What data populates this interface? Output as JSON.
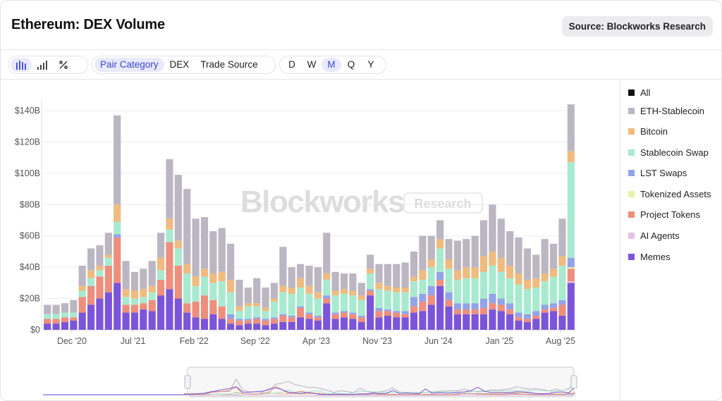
{
  "header": {
    "title": "Ethereum: DEX Volume",
    "source": "Source: Blockworks Research"
  },
  "toolbar": {
    "chart_type_icons": [
      "bar-chart-icon",
      "bar-chart-ascending-icon",
      "percent-icon"
    ],
    "group_by": [
      "Pair Category",
      "DEX",
      "Trade Source"
    ],
    "group_by_active": "Pair Category",
    "intervals": [
      "D",
      "W",
      "M",
      "Q",
      "Y"
    ],
    "interval_active": "M"
  },
  "watermark": {
    "brand": "Blockworks",
    "sub": "Research"
  },
  "legend": [
    {
      "label": "All",
      "color": "#111111"
    },
    {
      "label": "ETH-Stablecoin",
      "color": "#bbb6c2"
    },
    {
      "label": "Bitcoin",
      "color": "#efbb7f"
    },
    {
      "label": "Stablecoin Swap",
      "color": "#a8ead0"
    },
    {
      "label": "LST Swaps",
      "color": "#93a3e8"
    },
    {
      "label": "Tokenized Assets",
      "color": "#e8f2a3"
    },
    {
      "label": "Project Tokens",
      "color": "#ee8e7d"
    },
    {
      "label": "AI Agents",
      "color": "#e8bfe3"
    },
    {
      "label": "Memes",
      "color": "#7b55d9"
    }
  ],
  "chart_data": {
    "type": "bar",
    "stacked": true,
    "title": "Ethereum: DEX Volume",
    "xlabel": "",
    "ylabel": "",
    "ylim": [
      0,
      140
    ],
    "yticks": [
      "$0",
      "$20B",
      "$40B",
      "$60B",
      "$80B",
      "$100B",
      "$120B",
      "$140B"
    ],
    "xtick_labels": [
      "Dec '20",
      "Jul '21",
      "Feb '22",
      "Sep '22",
      "Apr '23",
      "Nov '23",
      "Jun '24",
      "Jan '25",
      "Aug '25"
    ],
    "xtick_index": [
      2,
      9,
      16,
      23,
      30,
      37,
      44,
      51,
      58
    ],
    "unit": "$B",
    "series_order": [
      "Memes",
      "AI Agents",
      "Project Tokens",
      "Tokenized Assets",
      "LST Swaps",
      "Stablecoin Swap",
      "Bitcoin",
      "ETH-Stablecoin"
    ],
    "series": [
      {
        "name": "Memes",
        "values": [
          4,
          4,
          5,
          6,
          11,
          16,
          20,
          24,
          30,
          11,
          11,
          13,
          12,
          22,
          26,
          20,
          11,
          8,
          7,
          10,
          7,
          4,
          3,
          4,
          4,
          3,
          4,
          5,
          5,
          8,
          7,
          6,
          17,
          7,
          8,
          7,
          5,
          22,
          8,
          9,
          8,
          8,
          11,
          12,
          16,
          28,
          15,
          10,
          10,
          10,
          10,
          13,
          12,
          10,
          6,
          5,
          7,
          11,
          12,
          9,
          30
        ]
      },
      {
        "name": "AI Agents",
        "values": [
          0,
          0,
          0,
          0,
          0,
          0,
          0,
          0,
          0,
          0,
          0,
          0,
          0,
          0,
          0,
          0,
          0,
          0,
          0,
          0,
          0,
          0,
          0,
          0,
          0,
          0,
          0,
          0,
          0,
          0,
          0,
          0,
          0,
          0,
          0,
          0,
          0,
          0,
          0,
          0,
          0,
          0,
          0,
          0,
          0,
          0,
          0,
          0,
          0,
          0,
          0,
          0,
          0,
          0,
          0,
          0,
          0,
          0,
          0,
          0,
          1
        ]
      },
      {
        "name": "Project Tokens",
        "values": [
          3,
          3,
          3,
          2,
          10,
          12,
          14,
          17,
          29,
          5,
          5,
          4,
          7,
          10,
          30,
          21,
          6,
          10,
          15,
          9,
          8,
          3,
          3,
          2,
          3,
          3,
          3,
          4,
          3,
          6,
          3,
          2,
          3,
          3,
          3,
          3,
          3,
          3,
          4,
          3,
          3,
          2,
          4,
          6,
          6,
          4,
          4,
          3,
          3,
          3,
          4,
          4,
          4,
          3,
          2,
          2,
          2,
          2,
          2,
          7,
          8
        ]
      },
      {
        "name": "Tokenized Assets",
        "values": [
          0,
          0,
          0,
          0,
          0,
          0,
          0,
          0,
          0,
          0,
          0,
          0,
          0,
          0,
          0,
          0,
          0,
          0,
          0,
          0,
          0,
          0,
          0,
          0,
          0,
          0,
          0,
          0,
          0,
          0,
          0,
          0,
          0,
          0,
          0,
          0,
          0,
          0,
          0,
          0,
          0,
          0,
          0,
          0,
          0,
          0,
          0,
          0,
          0,
          0,
          0,
          0,
          0,
          0,
          0,
          0,
          0,
          0,
          0,
          0,
          1
        ]
      },
      {
        "name": "LST Swaps",
        "values": [
          0,
          0,
          0,
          0,
          0,
          0,
          0,
          0,
          2,
          0,
          0,
          0,
          0,
          0,
          0,
          0,
          0,
          0,
          0,
          0,
          0,
          3,
          1,
          1,
          1,
          1,
          1,
          1,
          1,
          1,
          1,
          1,
          2,
          1,
          1,
          1,
          1,
          1,
          2,
          1,
          1,
          2,
          6,
          5,
          6,
          5,
          5,
          4,
          4,
          4,
          6,
          6,
          4,
          4,
          3,
          3,
          3,
          3,
          3,
          3,
          6
        ]
      },
      {
        "name": "Stablecoin Swap",
        "values": [
          3,
          3,
          3,
          3,
          4,
          5,
          4,
          5,
          8,
          5,
          4,
          4,
          5,
          6,
          8,
          11,
          19,
          10,
          12,
          11,
          16,
          14,
          5,
          8,
          7,
          5,
          10,
          14,
          14,
          12,
          12,
          11,
          10,
          11,
          11,
          11,
          10,
          10,
          12,
          12,
          12,
          12,
          10,
          9,
          12,
          15,
          15,
          15,
          16,
          16,
          17,
          18,
          17,
          16,
          18,
          16,
          15,
          15,
          17,
          22,
          61
        ]
      },
      {
        "name": "Bitcoin",
        "values": [
          0,
          0,
          0,
          0,
          3,
          5,
          3,
          2,
          11,
          5,
          5,
          5,
          4,
          8,
          7,
          5,
          6,
          6,
          5,
          6,
          6,
          8,
          3,
          2,
          2,
          2,
          2,
          4,
          4,
          6,
          5,
          4,
          4,
          3,
          3,
          3,
          3,
          3,
          4,
          3,
          3,
          3,
          3,
          6,
          5,
          6,
          6,
          6,
          7,
          7,
          10,
          9,
          9,
          8,
          7,
          6,
          6,
          5,
          5,
          6,
          7
        ]
      },
      {
        "name": "ETH-Stablecoin",
        "values": [
          6,
          6,
          6,
          8,
          13,
          14,
          13,
          14,
          57,
          18,
          12,
          13,
          16,
          16,
          38,
          42,
          48,
          37,
          33,
          27,
          28,
          23,
          17,
          10,
          16,
          13,
          10,
          25,
          13,
          9,
          13,
          16,
          26,
          12,
          10,
          11,
          8,
          9,
          12,
          14,
          15,
          16,
          16,
          22,
          15,
          12,
          13,
          19,
          18,
          20,
          23,
          30,
          25,
          22,
          23,
          20,
          15,
          22,
          16,
          24,
          30
        ]
      }
    ]
  }
}
